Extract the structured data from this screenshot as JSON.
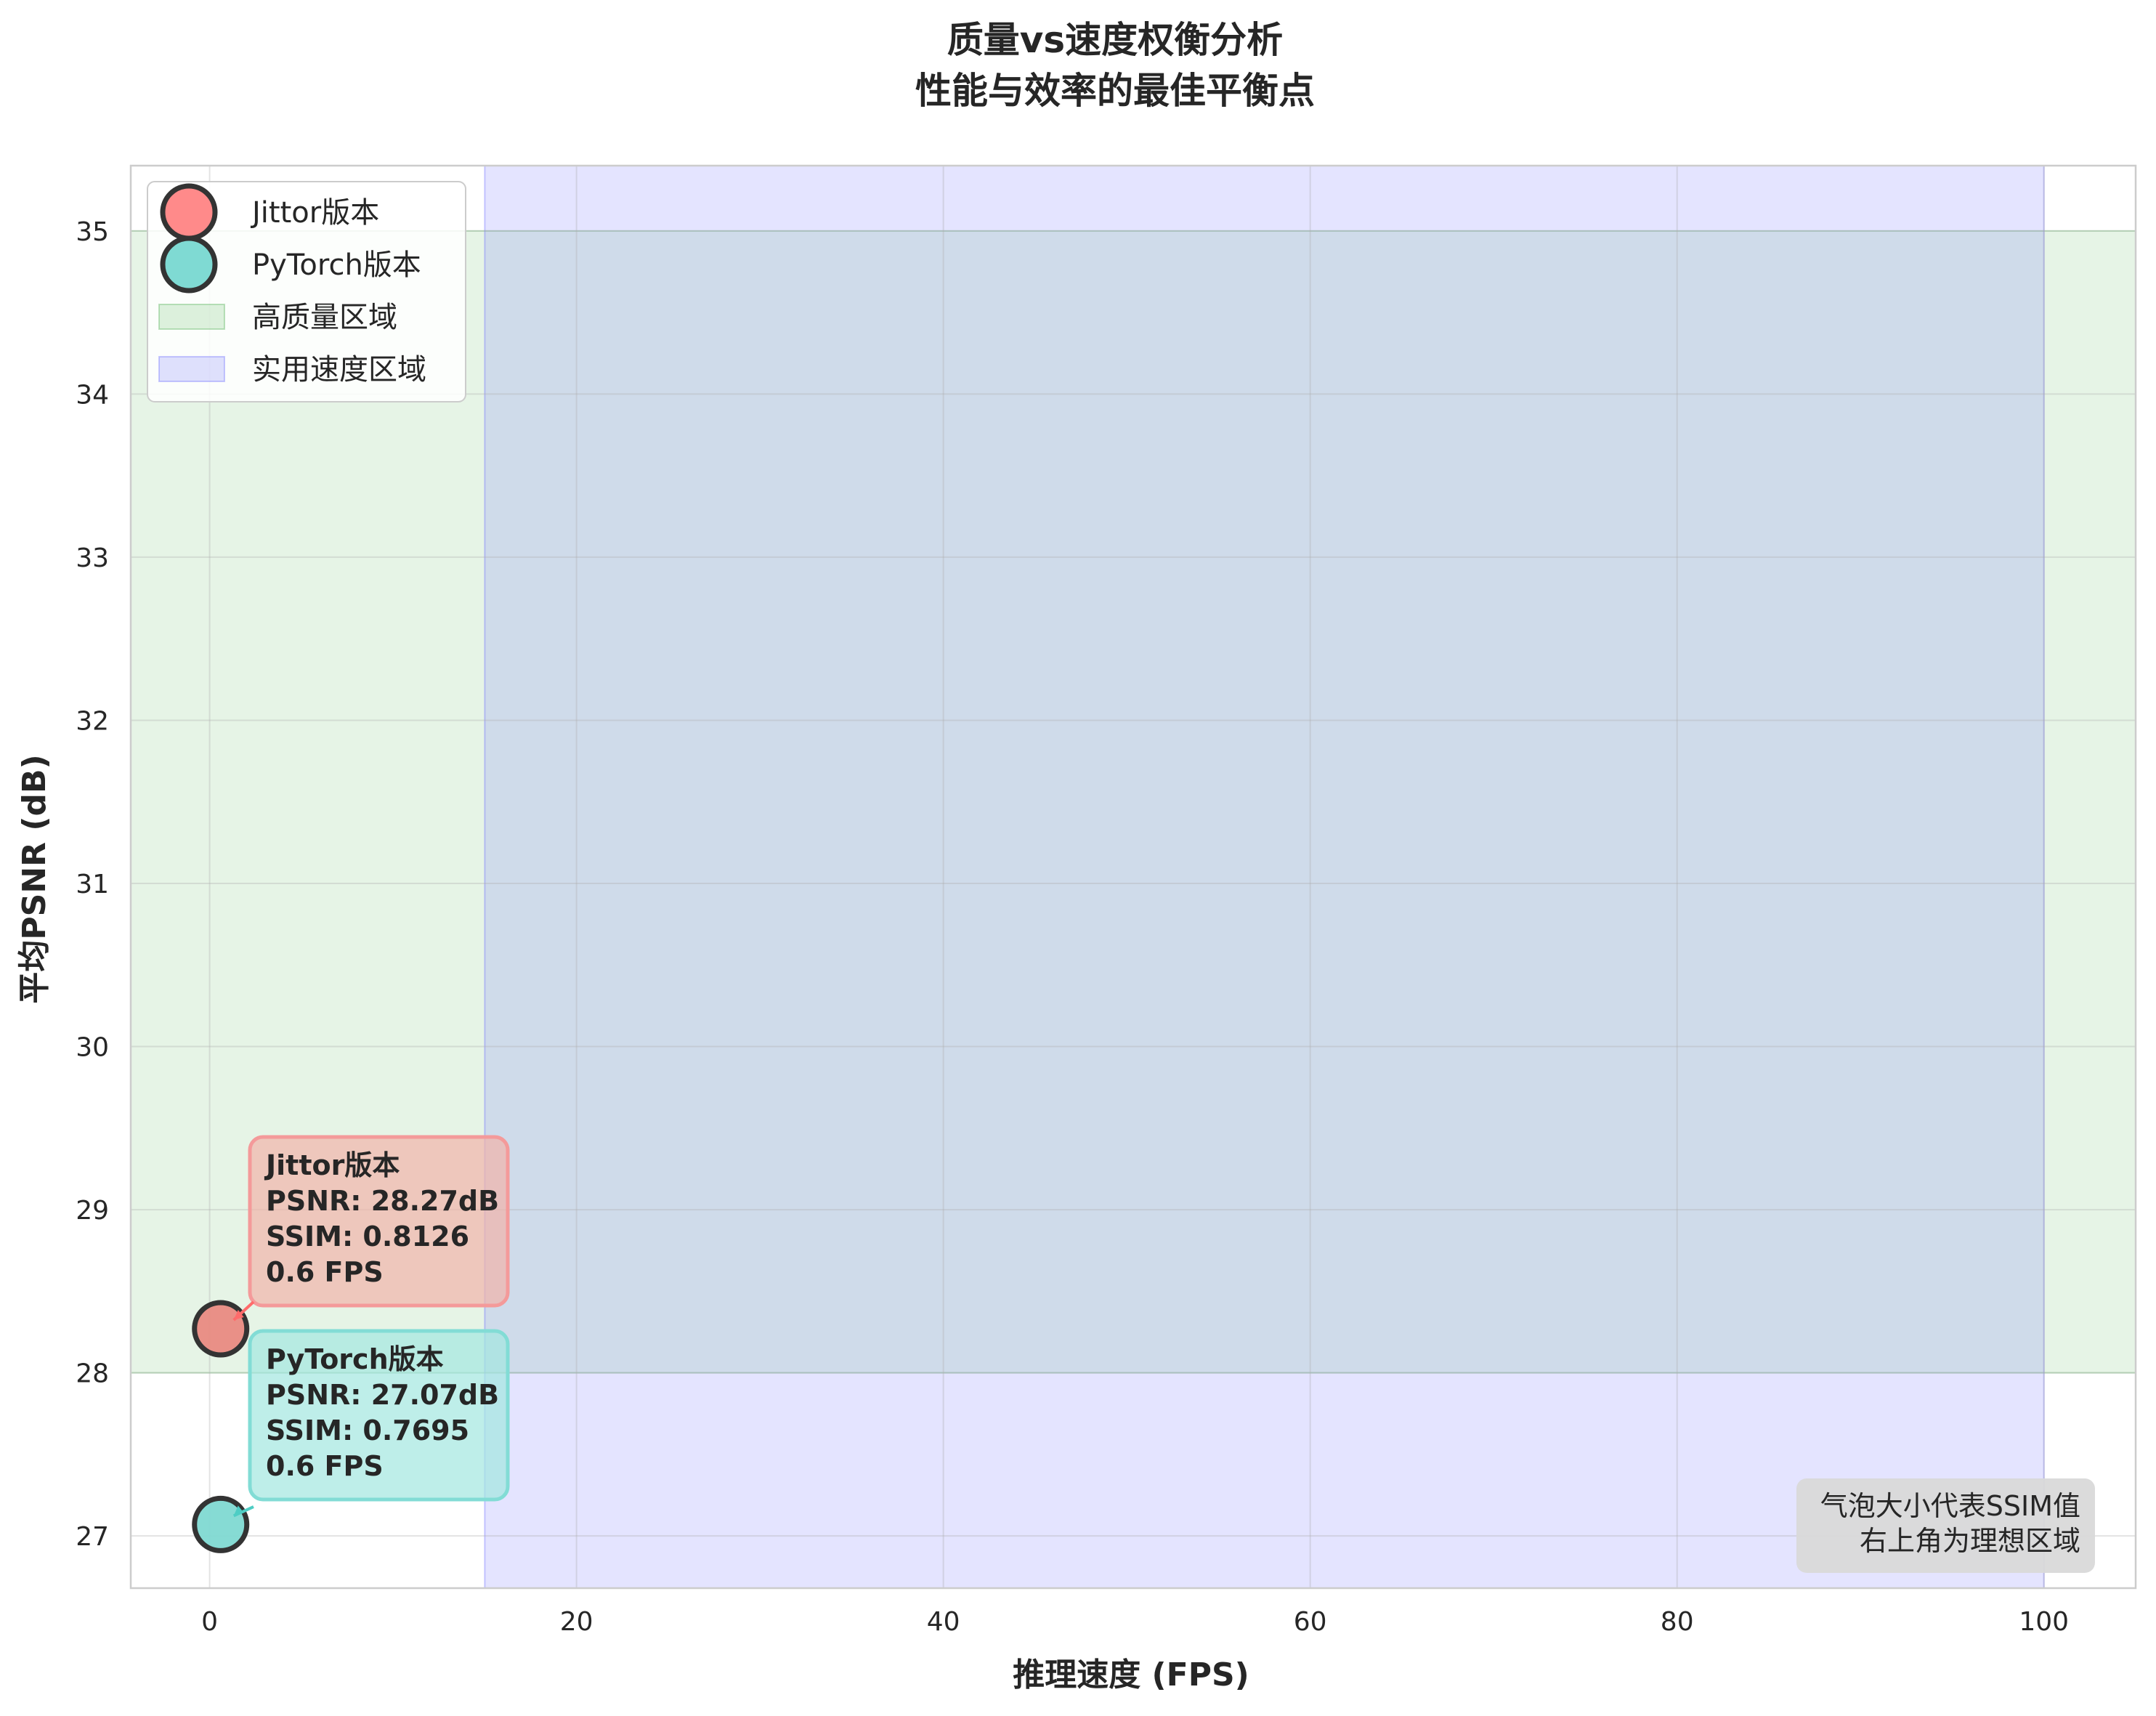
{
  "chart_data": {
    "type": "scatter",
    "title": [
      "质量vs速度权衡分析",
      "性能与效率的最佳平衡点"
    ],
    "xlabel": "推理速度 (FPS)",
    "ylabel": "平均PSNR (dB)",
    "xlim": [
      -4.3,
      105.0
    ],
    "ylim": [
      26.68,
      35.4
    ],
    "xticks": [
      0,
      20,
      40,
      60,
      80,
      100
    ],
    "yticks": [
      27,
      28,
      29,
      30,
      31,
      32,
      33,
      34,
      35
    ],
    "grid": true,
    "legend_position": "top-left",
    "series": [
      {
        "name": "Jittor版本",
        "x": 0.6,
        "y": 28.27,
        "ssim": 0.8126,
        "color": "#ff6b6b",
        "annotation": [
          "Jittor版本",
          "PSNR: 28.27dB",
          "SSIM: 0.8126",
          "0.6 FPS"
        ]
      },
      {
        "name": "PyTorch版本",
        "x": 0.6,
        "y": 27.07,
        "ssim": 0.7695,
        "color": "#4ecdc4",
        "annotation": [
          "PyTorch版本",
          "PSNR: 27.07dB",
          "SSIM: 0.7695",
          "0.6 FPS"
        ]
      }
    ],
    "regions": [
      {
        "name": "高质量区域",
        "x_range": [
          -4.3,
          105.0
        ],
        "y_range": [
          28,
          35
        ],
        "color": "#4caf50"
      },
      {
        "name": "实用速度区域",
        "x_range": [
          15,
          100
        ],
        "y_range": [
          26.68,
          35.4
        ],
        "color": "#6b6bff"
      }
    ],
    "note": [
      "气泡大小代表SSIM值",
      "右上角为理想区域"
    ]
  }
}
